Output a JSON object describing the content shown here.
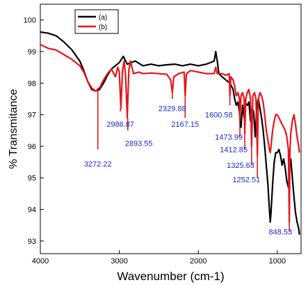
{
  "chart_data": {
    "type": "line",
    "xlabel": "Wavenumber (cm-1)",
    "ylabel": "% Transmitance",
    "x_reversed": true,
    "xlim": [
      4000,
      700
    ],
    "ylim": [
      92.6,
      100.5
    ],
    "x_ticks": [
      {
        "value": 4000,
        "label": "4000"
      },
      {
        "value": 3000,
        "label": "3000"
      },
      {
        "value": 2000,
        "label": "2000"
      },
      {
        "value": 1000,
        "label": "1000"
      }
    ],
    "y_ticks": [
      {
        "value": 100,
        "label": "100"
      },
      {
        "value": 99,
        "label": "99"
      },
      {
        "value": 98,
        "label": "98"
      },
      {
        "value": 97,
        "label": "97"
      },
      {
        "value": 96,
        "label": "96"
      },
      {
        "value": 95,
        "label": "95"
      },
      {
        "value": 94,
        "label": "94"
      },
      {
        "value": 93,
        "label": "93"
      }
    ],
    "legend": {
      "placement": "top-left"
    },
    "series": [
      {
        "name": "(a)",
        "color": "#000000",
        "points": [
          [
            4000,
            99.62
          ],
          [
            3900,
            99.58
          ],
          [
            3800,
            99.5
          ],
          [
            3700,
            99.3
          ],
          [
            3600,
            99.05
          ],
          [
            3500,
            98.7
          ],
          [
            3450,
            98.4
          ],
          [
            3400,
            98.05
          ],
          [
            3350,
            97.8
          ],
          [
            3300,
            97.75
          ],
          [
            3250,
            97.8
          ],
          [
            3200,
            98.0
          ],
          [
            3150,
            98.25
          ],
          [
            3100,
            98.45
          ],
          [
            3050,
            98.55
          ],
          [
            3000,
            98.65
          ],
          [
            2950,
            98.85
          ],
          [
            2900,
            98.6
          ],
          [
            2850,
            98.65
          ],
          [
            2800,
            98.7
          ],
          [
            2700,
            98.55
          ],
          [
            2600,
            98.6
          ],
          [
            2500,
            98.55
          ],
          [
            2400,
            98.58
          ],
          [
            2300,
            98.6
          ],
          [
            2200,
            98.55
          ],
          [
            2100,
            98.6
          ],
          [
            2000,
            98.55
          ],
          [
            1900,
            98.6
          ],
          [
            1800,
            98.7
          ],
          [
            1780,
            99.0
          ],
          [
            1760,
            98.7
          ],
          [
            1740,
            98.3
          ],
          [
            1720,
            98.25
          ],
          [
            1700,
            98.2
          ],
          [
            1650,
            98.1
          ],
          [
            1600,
            98.0
          ],
          [
            1560,
            97.8
          ],
          [
            1540,
            97.5
          ],
          [
            1520,
            97.3
          ],
          [
            1500,
            97.4
          ],
          [
            1480,
            97.1
          ],
          [
            1460,
            96.6
          ],
          [
            1440,
            97.3
          ],
          [
            1420,
            96.9
          ],
          [
            1400,
            97.35
          ],
          [
            1380,
            97.3
          ],
          [
            1360,
            97.4
          ],
          [
            1340,
            96.8
          ],
          [
            1320,
            97.2
          ],
          [
            1300,
            97.1
          ],
          [
            1280,
            96.3
          ],
          [
            1260,
            97.3
          ],
          [
            1240,
            97.5
          ],
          [
            1220,
            97.2
          ],
          [
            1200,
            96.9
          ],
          [
            1180,
            96.5
          ],
          [
            1160,
            96.0
          ],
          [
            1140,
            95.4
          ],
          [
            1120,
            94.8
          ],
          [
            1100,
            94.0
          ],
          [
            1090,
            93.6
          ],
          [
            1080,
            93.9
          ],
          [
            1060,
            94.8
          ],
          [
            1040,
            95.5
          ],
          [
            1020,
            95.8
          ],
          [
            1000,
            95.8
          ],
          [
            980,
            95.9
          ],
          [
            960,
            95.7
          ],
          [
            940,
            95.4
          ],
          [
            920,
            95.6
          ],
          [
            900,
            95.3
          ],
          [
            880,
            94.9
          ],
          [
            860,
            94.7
          ],
          [
            845,
            95.3
          ],
          [
            830,
            95.6
          ],
          [
            810,
            95.0
          ],
          [
            790,
            94.4
          ],
          [
            770,
            93.9
          ],
          [
            750,
            93.6
          ],
          [
            730,
            93.4
          ],
          [
            720,
            93.2
          ]
        ]
      },
      {
        "name": "(b)",
        "color": "#e8141b",
        "points": [
          [
            4000,
            99.22
          ],
          [
            3900,
            99.1
          ],
          [
            3800,
            99.05
          ],
          [
            3700,
            98.9
          ],
          [
            3600,
            98.75
          ],
          [
            3500,
            98.55
          ],
          [
            3450,
            98.35
          ],
          [
            3400,
            98.05
          ],
          [
            3350,
            97.85
          ],
          [
            3300,
            97.75
          ],
          [
            3250,
            97.85
          ],
          [
            3200,
            98.1
          ],
          [
            3150,
            98.3
          ],
          [
            3100,
            98.45
          ],
          [
            3050,
            98.2
          ],
          [
            3020,
            98.5
          ],
          [
            3000,
            98.35
          ],
          [
            2980,
            97.2
          ],
          [
            2960,
            98.4
          ],
          [
            2940,
            98.7
          ],
          [
            2920,
            98.2
          ],
          [
            2900,
            96.9
          ],
          [
            2880,
            98.4
          ],
          [
            2860,
            98.7
          ],
          [
            2820,
            98.3
          ],
          [
            2750,
            98.35
          ],
          [
            2700,
            98.3
          ],
          [
            2600,
            98.32
          ],
          [
            2500,
            98.3
          ],
          [
            2400,
            98.28
          ],
          [
            2350,
            98.1
          ],
          [
            2330,
            97.7
          ],
          [
            2310,
            98.2
          ],
          [
            2250,
            98.3
          ],
          [
            2180,
            98.35
          ],
          [
            2167,
            97.6
          ],
          [
            2150,
            98.3
          ],
          [
            2100,
            98.4
          ],
          [
            2000,
            98.35
          ],
          [
            1900,
            98.3
          ],
          [
            1800,
            98.3
          ],
          [
            1780,
            98.5
          ],
          [
            1760,
            98.3
          ],
          [
            1700,
            98.3
          ],
          [
            1650,
            98.25
          ],
          [
            1610,
            98.3
          ],
          [
            1600,
            97.6
          ],
          [
            1590,
            98.2
          ],
          [
            1560,
            98.1
          ],
          [
            1540,
            97.9
          ],
          [
            1520,
            97.6
          ],
          [
            1500,
            97.7
          ],
          [
            1480,
            97.5
          ],
          [
            1474,
            96.8
          ],
          [
            1460,
            97.6
          ],
          [
            1440,
            97.7
          ],
          [
            1420,
            97.5
          ],
          [
            1413,
            96.4
          ],
          [
            1400,
            97.5
          ],
          [
            1380,
            97.7
          ],
          [
            1360,
            97.8
          ],
          [
            1340,
            97.5
          ],
          [
            1326,
            96.0
          ],
          [
            1310,
            97.6
          ],
          [
            1290,
            97.7
          ],
          [
            1270,
            97.5
          ],
          [
            1253,
            95.7
          ],
          [
            1240,
            97.5
          ],
          [
            1220,
            97.7
          ],
          [
            1200,
            97.6
          ],
          [
            1180,
            97.4
          ],
          [
            1160,
            97.0
          ],
          [
            1140,
            96.5
          ],
          [
            1120,
            96.2
          ],
          [
            1100,
            95.9
          ],
          [
            1090,
            95.8
          ],
          [
            1080,
            96.0
          ],
          [
            1060,
            96.5
          ],
          [
            1040,
            96.8
          ],
          [
            1020,
            97.0
          ],
          [
            1000,
            97.0
          ],
          [
            980,
            96.9
          ],
          [
            960,
            96.8
          ],
          [
            940,
            96.7
          ],
          [
            920,
            96.6
          ],
          [
            900,
            96.5
          ],
          [
            880,
            96.3
          ],
          [
            860,
            95.9
          ],
          [
            849,
            93.6
          ],
          [
            840,
            95.9
          ],
          [
            830,
            96.4
          ],
          [
            810,
            96.8
          ],
          [
            790,
            97.0
          ],
          [
            770,
            96.7
          ],
          [
            750,
            96.3
          ],
          [
            730,
            96.0
          ],
          [
            720,
            95.8
          ]
        ]
      }
    ],
    "annotations": [
      {
        "label": "3272.22",
        "x": 3272.22,
        "y_line_end": 95.9,
        "y_text": 95.45,
        "anchor": "middle"
      },
      {
        "label": "2986.87",
        "x": 2986.87,
        "y_line_end": 97.1,
        "y_text": 96.7,
        "anchor": "middle"
      },
      {
        "label": "2893.55",
        "x": 2893.55,
        "y_line_end": 96.5,
        "y_text": 96.1,
        "anchor": "start"
      },
      {
        "label": "2329.88",
        "x": 2329.88,
        "y_line_end": 97.5,
        "y_text": 97.2,
        "anchor": "middle"
      },
      {
        "label": "2167.15",
        "x": 2167.15,
        "y_line_end": 96.9,
        "y_text": 96.7,
        "anchor": "middle"
      },
      {
        "label": "1600.58",
        "x": 1600.58,
        "y_line_end": 97.3,
        "y_text": 97.0,
        "anchor": "end"
      },
      {
        "label": "1473.99",
        "x": 1473.99,
        "y_line_end": 96.3,
        "y_text": 96.3,
        "anchor": "end"
      },
      {
        "label": "1412.85",
        "x": 1412.85,
        "y_line_end": 95.9,
        "y_text": 95.9,
        "anchor": "end"
      },
      {
        "label": "1325.63",
        "x": 1325.63,
        "y_line_end": 95.4,
        "y_text": 95.4,
        "anchor": "end"
      },
      {
        "label": "1252.51",
        "x": 1252.51,
        "y_line_end": 95.0,
        "y_text": 94.95,
        "anchor": "end"
      },
      {
        "label": "848.53",
        "x": 848.53,
        "y_line_end": 93.3,
        "y_text": 93.3,
        "anchor": "end"
      }
    ]
  }
}
